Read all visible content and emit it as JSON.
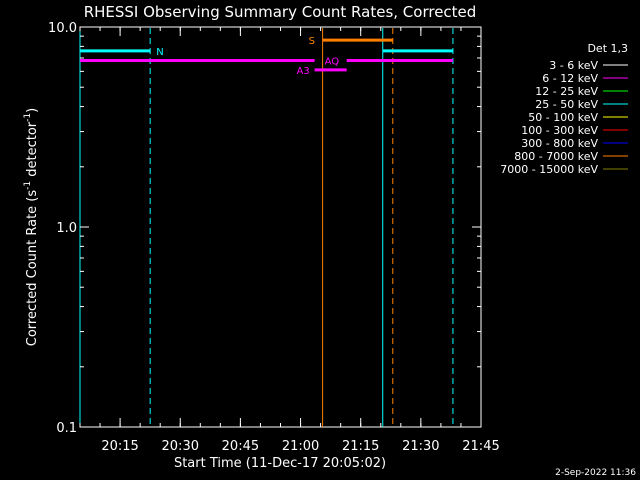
{
  "chart_data": {
    "type": "line",
    "title": "RHESSI Observing Summary Count Rates, Corrected",
    "xlabel": "Start Time (11-Dec-17 20:05:02)",
    "ylabel_main": "Corrected Count Rate (s",
    "ylabel_sup1": "-1",
    "ylabel_mid": " detector",
    "ylabel_sup2": "-1",
    "ylabel_end": ")",
    "yscale": "log",
    "ylim": [
      0.1,
      10.0
    ],
    "xlim_minutes": [
      0,
      100
    ],
    "x_ticks": [
      {
        "label": "20:15",
        "minutes": 10
      },
      {
        "label": "20:30",
        "minutes": 25
      },
      {
        "label": "20:45",
        "minutes": 40
      },
      {
        "label": "21:00",
        "minutes": 55
      },
      {
        "label": "21:15",
        "minutes": 70
      },
      {
        "label": "21:30",
        "minutes": 85
      },
      {
        "label": "21:45",
        "minutes": 100
      }
    ],
    "y_ticks": [
      {
        "label": "10.0",
        "value": 10.0
      },
      {
        "label": "1.0",
        "value": 1.0
      },
      {
        "label": "0.1",
        "value": 0.1
      }
    ],
    "legend_title": "Det 1,3",
    "legend_position": "right",
    "legend": [
      {
        "label": "3 - 6 keV",
        "color": "#ffffff"
      },
      {
        "label": "6 - 12 keV",
        "color": "#ff00ff"
      },
      {
        "label": "12 - 25 keV",
        "color": "#00ff00"
      },
      {
        "label": "25 - 50 keV",
        "color": "#00ffff"
      },
      {
        "label": "50 - 100 keV",
        "color": "#ffff00"
      },
      {
        "label": "100 - 300 keV",
        "color": "#ff0000"
      },
      {
        "label": "300 - 800 keV",
        "color": "#0000ff"
      },
      {
        "label": "800 - 7000 keV",
        "color": "#ff8000"
      },
      {
        "label": "7000 - 15000 keV",
        "color": "#808000"
      }
    ],
    "flag_bars": [
      {
        "label": "N",
        "color": "#00ffff",
        "y": 7.6,
        "x_start": 0,
        "x_end": 17.5,
        "label_x": 19
      },
      {
        "label": "",
        "color": "#00ffff",
        "y": 7.6,
        "x_start": 75.5,
        "x_end": 93,
        "label_x": null
      },
      {
        "label": "S",
        "color": "#ff8000",
        "y": 8.6,
        "x_start": 60.5,
        "x_end": 78,
        "label_x": 57
      },
      {
        "label": "AQ",
        "color": "#ff00ff",
        "y": 6.8,
        "x_start": 0,
        "x_end": 58.5,
        "label_x": 61
      },
      {
        "label": "",
        "color": "#ff00ff",
        "y": 6.8,
        "x_start": 66.5,
        "x_end": 93,
        "label_x": null
      },
      {
        "label": "A3",
        "color": "#ff00ff",
        "y": 6.1,
        "x_start": 58.5,
        "x_end": 66.5,
        "label_x": 54
      }
    ],
    "vertical_lines": [
      {
        "x": 0,
        "color": "#00ffff",
        "style": "solid"
      },
      {
        "x": 17.5,
        "color": "#00ffff",
        "style": "dashed"
      },
      {
        "x": 60.5,
        "color": "#ff8000",
        "style": "solid"
      },
      {
        "x": 75.5,
        "color": "#00ffff",
        "style": "solid"
      },
      {
        "x": 78,
        "color": "#ff8000",
        "style": "dashed"
      },
      {
        "x": 93,
        "color": "#00ffff",
        "style": "dashed"
      }
    ],
    "timestamp": "2-Sep-2022 11:36"
  }
}
